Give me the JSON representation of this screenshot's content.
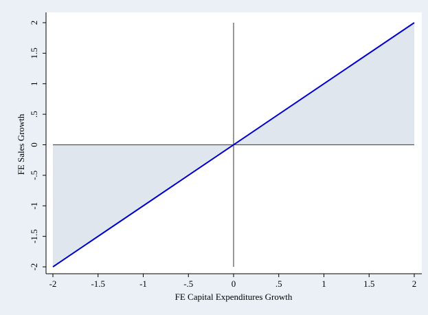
{
  "chart_data": {
    "type": "line",
    "x_label": "FE Capital Expenditures Growth",
    "y_label": "FE Sales Growth",
    "x": [
      -2,
      2
    ],
    "values": [
      -2,
      2
    ],
    "color": "#0000cc",
    "fill_to_zero": "#dfe6ee",
    "reference_lines": {
      "x": 0,
      "y": 0
    },
    "xlim": [
      -2,
      2
    ],
    "ylim": [
      -2,
      2
    ],
    "xticks": [
      -2,
      {
        "value": -1.5,
        "label": "-1.5"
      },
      -1,
      {
        "value": -0.5,
        "label": "-.5"
      },
      0,
      {
        "value": 0.5,
        "label": ".5"
      },
      1,
      1.5,
      2
    ],
    "yticks": [
      -2,
      {
        "value": -1.5,
        "label": "-1.5"
      },
      -1,
      {
        "value": -0.5,
        "label": "-.5"
      },
      0,
      {
        "value": 0.5,
        "label": ".5"
      },
      1,
      1.5,
      2
    ],
    "grid": false
  }
}
